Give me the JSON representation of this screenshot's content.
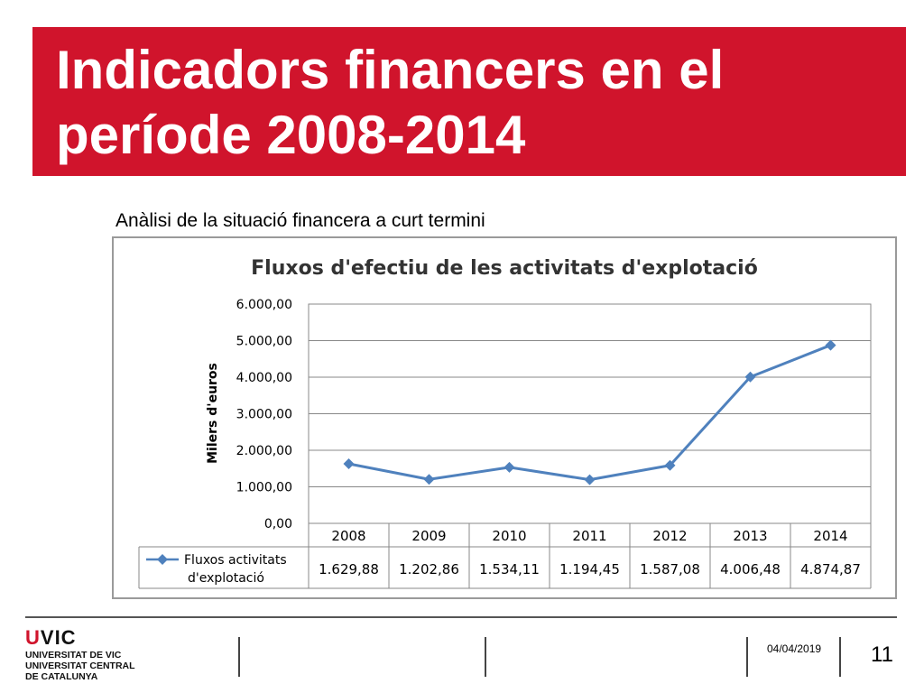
{
  "slide": {
    "title": "Indicadors financers en el període 2008-2014",
    "subtitle": "Anàlisi de la situació financera a curt termini"
  },
  "footer": {
    "logo": "UVIC",
    "logo_u": "U",
    "logo_rest": "VIC",
    "org_lines": [
      "UNIVERSITAT DE VIC",
      "UNIVERSITAT CENTRAL",
      "DE CATALUNYA"
    ],
    "date": "04/04/2019",
    "page_number": "11"
  },
  "colors": {
    "banner": "#d0142c",
    "series": "#4f81bd"
  },
  "chart_data": {
    "type": "line",
    "title": "Fluxos d'efectiu de les activitats d'explotació",
    "ylabel": "Milers d'euros",
    "xlabel": "",
    "categories": [
      "2008",
      "2009",
      "2010",
      "2011",
      "2012",
      "2013",
      "2014"
    ],
    "series": [
      {
        "name": "Fluxos activitats d'explotació",
        "name_lines": [
          "Fluxos activitats",
          "d'explotació"
        ],
        "values": [
          1629.88,
          1202.86,
          1534.11,
          1194.45,
          1587.08,
          4006.48,
          4874.87
        ],
        "value_labels": [
          "1.629,88",
          "1.202,86",
          "1.534,11",
          "1.194,45",
          "1.587,08",
          "4.006,48",
          "4.874,87"
        ],
        "marker": "diamond"
      }
    ],
    "ylim": [
      0,
      6000
    ],
    "yticks": [
      0,
      1000,
      2000,
      3000,
      4000,
      5000,
      6000
    ],
    "ytick_labels": [
      "0,00",
      "1.000,00",
      "2.000,00",
      "3.000,00",
      "4.000,00",
      "5.000,00",
      "6.000,00"
    ],
    "grid": true,
    "legend": "data-table-below"
  }
}
